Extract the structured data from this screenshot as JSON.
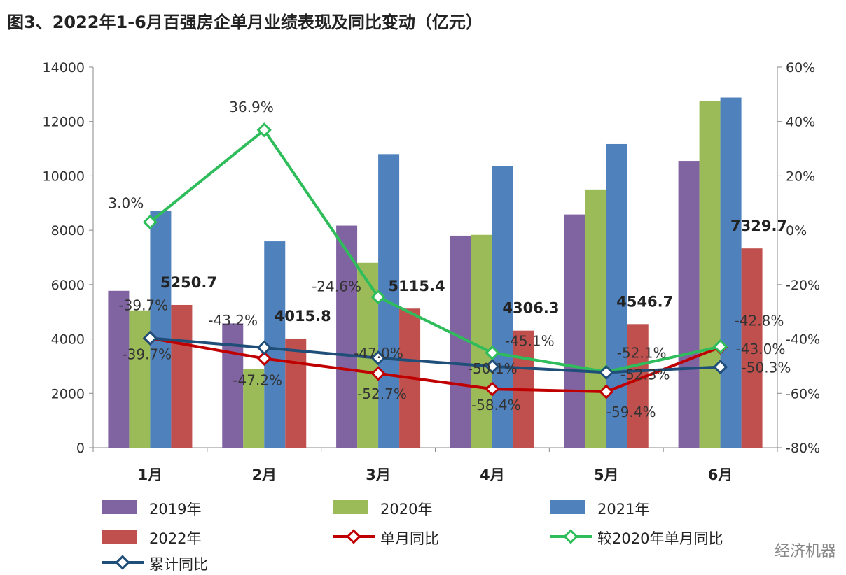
{
  "title": "图3、2022年1-6月百强房企单月业绩表现及同比变动（亿元）",
  "watermark": "经济机器",
  "colors": {
    "2019": "#8064a2",
    "2020": "#9bbb59",
    "2021": "#4f81bd",
    "2022": "#c0504d",
    "monthly_yoy": "#c00000",
    "vs2020": "#2ebd5a",
    "cumulative_yoy": "#1f4e79"
  },
  "chart_data": {
    "type": "bar",
    "title": "图3、2022年1-6月百强房企单月业绩表现及同比变动（亿元）",
    "categories": [
      "1月",
      "2月",
      "3月",
      "4月",
      "5月",
      "6月"
    ],
    "y_left": {
      "min": 0,
      "max": 14000,
      "ticks": [
        "0",
        "2000",
        "4000",
        "6000",
        "8000",
        "10000",
        "12000",
        "14000"
      ]
    },
    "y_right": {
      "min": -80,
      "max": 60,
      "ticks": [
        "-80%",
        "-60%",
        "-40%",
        "-20%",
        "0%",
        "20%",
        "40%",
        "60%"
      ]
    },
    "series": [
      {
        "name": "2019年",
        "type": "bar",
        "values": [
          5770,
          4570,
          8170,
          7800,
          8580,
          10550
        ]
      },
      {
        "name": "2020年",
        "type": "bar",
        "values": [
          5050,
          2900,
          6800,
          7830,
          9500,
          12760
        ]
      },
      {
        "name": "2021年",
        "type": "bar",
        "values": [
          8700,
          7590,
          10800,
          10370,
          11170,
          12880
        ]
      },
      {
        "name": "2022年",
        "type": "bar",
        "values": [
          5250.7,
          4015.8,
          5115.4,
          4306.3,
          4546.7,
          7329.7
        ],
        "labels": [
          "5250.7",
          "4015.8",
          "5115.4",
          "4306.3",
          "4546.7",
          "7329.7"
        ]
      },
      {
        "name": "单月同比",
        "type": "line",
        "axis": "right",
        "values": [
          -39.7,
          -47.2,
          -52.7,
          -58.4,
          -59.4,
          -43.0
        ],
        "labels": [
          "-39.7%",
          "-47.2%",
          "-52.7%",
          "-58.4%",
          "-59.4%",
          "-43.0%"
        ]
      },
      {
        "name": "较2020年单月同比",
        "type": "line",
        "axis": "right",
        "values": [
          3.0,
          36.9,
          -24.6,
          -45.1,
          -52.1,
          -42.8
        ],
        "labels": [
          "3.0%",
          "36.9%",
          "-24.6%",
          "-45.1%",
          "-52.1%",
          "-42.8%"
        ]
      },
      {
        "name": "累计同比",
        "type": "line",
        "axis": "right",
        "values": [
          -39.7,
          -43.2,
          -47.0,
          -50.1,
          -52.3,
          -50.3
        ],
        "labels": [
          "-39.7%",
          "-43.2%",
          "-47.0%",
          "-50.1%",
          "-52.3%",
          "-50.3%"
        ]
      }
    ],
    "legend": "bottom"
  }
}
